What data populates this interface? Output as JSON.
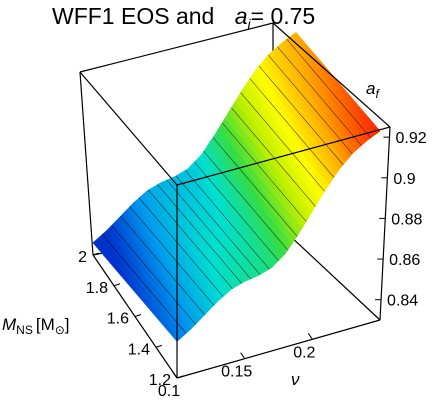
{
  "chart_data": {
    "type": "surface",
    "title_prefix": "WFF1 EOS  and",
    "title_symbol": "a",
    "title_symbol_sub": "i",
    "title_suffix": "= 0.75",
    "x_label": "ν",
    "x_ticks": [
      "0.1",
      "0.15",
      "0.2"
    ],
    "x_range": [
      0.1,
      0.25
    ],
    "y_label_main": "M",
    "y_label_sub": "NS",
    "y_label_unit": "[M",
    "y_label_unit_sub": "⊙",
    "y_label_close": "]",
    "y_ticks": [
      "1.2",
      "1.4",
      "1.6",
      "1.8",
      "2"
    ],
    "y_range": [
      1.2,
      2.0
    ],
    "z_label_main": "a",
    "z_label_sub": "f",
    "z_ticks": [
      "0.84",
      "0.86",
      "0.88",
      "0.9",
      "0.92"
    ],
    "z_range": [
      0.83,
      0.925
    ],
    "surface": {
      "nu": [
        0.1,
        0.11,
        0.12,
        0.13,
        0.14,
        0.15,
        0.16,
        0.17,
        0.18,
        0.19,
        0.2,
        0.21,
        0.22,
        0.23,
        0.24,
        0.25
      ],
      "af_min_mass": [
        0.848,
        0.852,
        0.857,
        0.862,
        0.866,
        0.868,
        0.869,
        0.871,
        0.876,
        0.884,
        0.893,
        0.902,
        0.91,
        0.916,
        0.92,
        0.923
      ],
      "mass_drop_at_2": 0.012
    },
    "colormap": [
      "#0033cc",
      "#0099ee",
      "#00e0d0",
      "#33dd44",
      "#bbee00",
      "#ffff00",
      "#ffaa00",
      "#ff2200"
    ],
    "grid": false
  }
}
